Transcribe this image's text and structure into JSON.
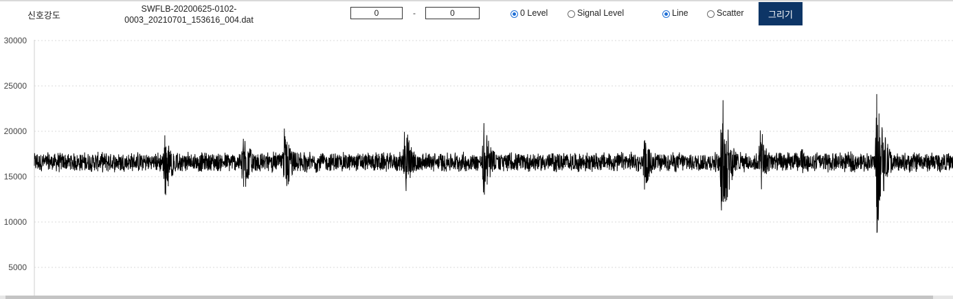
{
  "header": {
    "signal_label": "신호강도",
    "filename": "SWFLB-20200625-0102-0003_20210701_153616_004.dat",
    "range_start": "0",
    "range_sep": "-",
    "range_end": "0",
    "level_options": [
      {
        "label": "0 Level",
        "checked": true
      },
      {
        "label": "Signal Level",
        "checked": false
      }
    ],
    "mode_options": [
      {
        "label": "Line",
        "checked": true
      },
      {
        "label": "Scatter",
        "checked": false
      }
    ],
    "draw_button": "그리기"
  },
  "colors": {
    "button_bg": "#0d3566",
    "line": "#000000",
    "radio_accent": "#1f6fd6"
  },
  "chart_data": {
    "type": "line",
    "title": "",
    "xlabel": "",
    "ylabel": "",
    "ylim": [
      3000,
      30000
    ],
    "yticks": [
      5000,
      10000,
      15000,
      20000,
      25000,
      30000
    ],
    "ytick_labels": [
      "5000",
      "10000",
      "15000",
      "20000",
      "25000",
      "30000"
    ],
    "grid": "horizontal-dotted",
    "baseline": 16600,
    "noise_amplitude": 1200,
    "sample_count": 4000,
    "bursts": [
      {
        "position": 0.142,
        "peak_high": 19900,
        "peak_low": 12300
      },
      {
        "position": 0.227,
        "peak_high": 20800,
        "peak_low": 12500
      },
      {
        "position": 0.272,
        "peak_high": 20700,
        "peak_low": 11500
      },
      {
        "position": 0.403,
        "peak_high": 21500,
        "peak_low": 12500
      },
      {
        "position": 0.489,
        "peak_high": 21700,
        "peak_low": 12300
      },
      {
        "position": 0.664,
        "peak_high": 19500,
        "peak_low": 13200
      },
      {
        "position": 0.748,
        "peak_high": 25500,
        "peak_low": 7700
      },
      {
        "position": 0.79,
        "peak_high": 20800,
        "peak_low": 12500
      },
      {
        "position": 0.835,
        "peak_high": 18300,
        "peak_low": 15000
      },
      {
        "position": 0.917,
        "peak_high": 26000,
        "peak_low": 8200
      }
    ]
  }
}
